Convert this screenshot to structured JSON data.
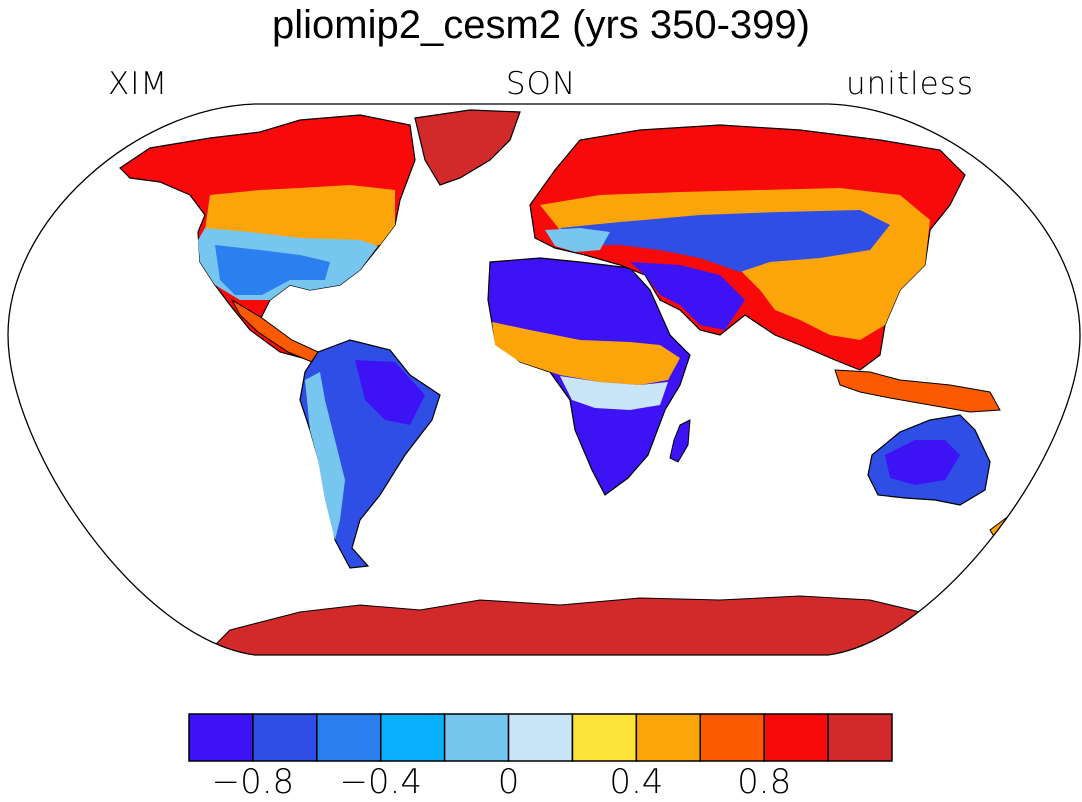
{
  "title": "pliomip2_cesm2 (yrs 350-399)",
  "left_label": "XIM",
  "center_label": "SON",
  "right_label": "unitless",
  "colorbar": {
    "colors": [
      "#3d13f5",
      "#2e4ee6",
      "#2c7fee",
      "#0ab0fb",
      "#77c6ef",
      "#c8e6f7",
      "#fde23a",
      "#fca50a",
      "#fc5a00",
      "#f80a0a",
      "#d22a2a"
    ],
    "tick_labels": [
      "−0.8",
      "−0.4",
      "0",
      "0.4",
      "0.8"
    ]
  },
  "map": {
    "projection": "Robinson",
    "ocean_fill": "#ffffff",
    "coastline_color": "#000000"
  }
}
